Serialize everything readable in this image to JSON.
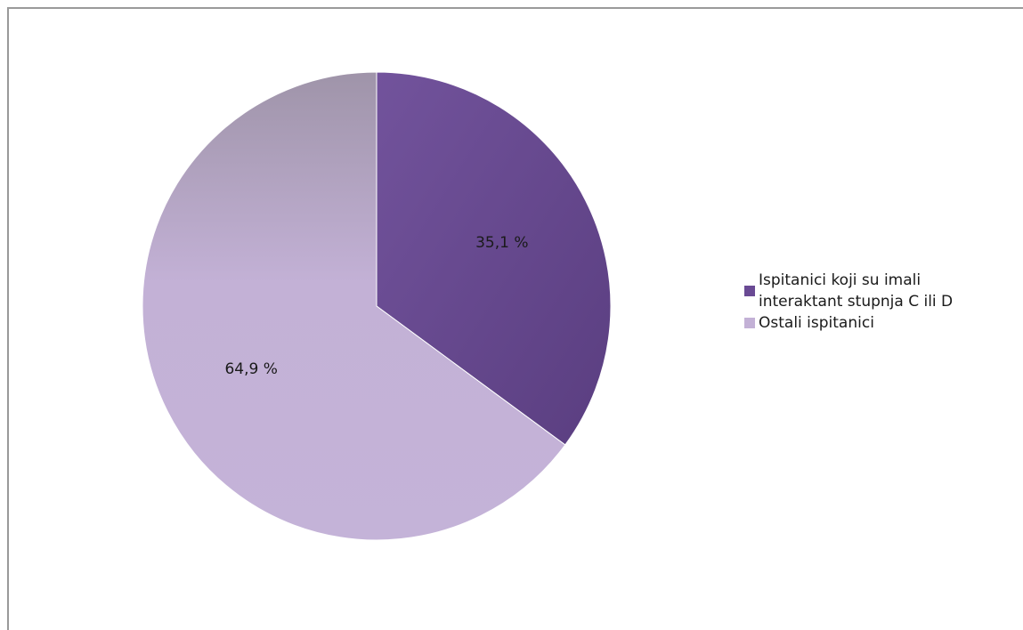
{
  "chart_data": {
    "type": "pie",
    "title": "",
    "categories": [
      "Ispitanici koji su imali interaktant stupnja C ili D",
      "Ostali ispitanici"
    ],
    "values": [
      35.1,
      64.9
    ],
    "data_labels": [
      "35,1 %",
      "64,9 %"
    ],
    "colors": [
      "#6a4a94",
      "#c3b1d6"
    ],
    "legend_position": "right",
    "start_angle_deg": 0,
    "direction": "clockwise"
  },
  "legend": {
    "items": [
      {
        "label_line1": "Ispitanici koji su imali",
        "label_line2": "interaktant stupnja C ili D"
      },
      {
        "label_line1": "Ostali ispitanici"
      }
    ]
  }
}
